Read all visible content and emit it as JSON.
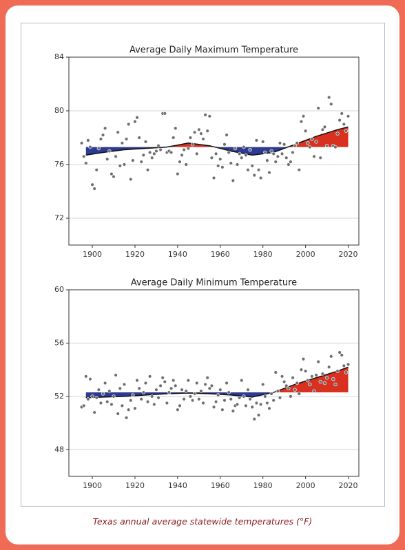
{
  "caption": "Texas annual average statewide temperatures (°F)",
  "chart_data": [
    {
      "type": "scatter",
      "title": "Average Daily Maximum Temperature",
      "xlim": [
        1889,
        2025
      ],
      "xticks": [
        1900,
        1920,
        1940,
        1960,
        1980,
        2000,
        2020
      ],
      "ylim": [
        70,
        84
      ],
      "yticks": [
        72,
        76,
        80,
        84
      ],
      "grid": true,
      "color": "#6f6f6f",
      "x": [
        1895,
        1896,
        1897,
        1898,
        1899,
        1900,
        1901,
        1902,
        1903,
        1904,
        1905,
        1906,
        1907,
        1908,
        1909,
        1910,
        1911,
        1912,
        1913,
        1914,
        1915,
        1916,
        1917,
        1918,
        1919,
        1920,
        1921,
        1922,
        1923,
        1924,
        1925,
        1926,
        1927,
        1928,
        1929,
        1930,
        1931,
        1932,
        1933,
        1934,
        1935,
        1936,
        1937,
        1938,
        1939,
        1940,
        1941,
        1942,
        1943,
        1944,
        1945,
        1946,
        1947,
        1948,
        1949,
        1950,
        1951,
        1952,
        1953,
        1954,
        1955,
        1956,
        1957,
        1958,
        1959,
        1960,
        1961,
        1962,
        1963,
        1964,
        1965,
        1966,
        1967,
        1968,
        1969,
        1970,
        1971,
        1972,
        1973,
        1974,
        1975,
        1976,
        1977,
        1978,
        1979,
        1980,
        1981,
        1982,
        1983,
        1984,
        1985,
        1986,
        1987,
        1988,
        1989,
        1990,
        1991,
        1992,
        1993,
        1994,
        1995,
        1996,
        1997,
        1998,
        1999,
        2000,
        2001,
        2002,
        2003,
        2004,
        2005,
        2006,
        2007,
        2008,
        2009,
        2010,
        2011,
        2012,
        2013,
        2014,
        2015,
        2016,
        2017,
        2018,
        2019,
        2020
      ],
      "values": [
        77.6,
        76.6,
        76.1,
        77.8,
        77.3,
        74.5,
        74.2,
        75.6,
        77.2,
        77.9,
        78.2,
        78.7,
        76.4,
        77.0,
        75.3,
        75.1,
        76.6,
        78.4,
        75.9,
        77.6,
        76.0,
        77.9,
        79.0,
        74.9,
        76.3,
        79.2,
        79.5,
        78.0,
        76.2,
        76.7,
        77.7,
        75.6,
        76.9,
        76.5,
        76.8,
        77.0,
        77.4,
        77.1,
        79.8,
        79.8,
        76.9,
        77.0,
        76.9,
        78.0,
        78.7,
        75.3,
        76.2,
        76.7,
        77.1,
        76.0,
        77.2,
        78.0,
        77.5,
        78.4,
        76.8,
        78.6,
        78.3,
        77.9,
        79.7,
        78.5,
        79.6,
        76.5,
        75.0,
        76.8,
        75.9,
        76.4,
        75.8,
        77.5,
        78.2,
        76.9,
        76.1,
        74.8,
        77.2,
        76.0,
        76.8,
        76.5,
        77.3,
        76.7,
        75.6,
        77.1,
        75.9,
        75.2,
        77.8,
        75.6,
        75.0,
        77.7,
        76.9,
        76.3,
        75.4,
        77.0,
        76.8,
        76.2,
        76.6,
        77.6,
        76.8,
        77.5,
        76.5,
        76.0,
        76.2,
        76.9,
        77.4,
        77.6,
        75.6,
        79.2,
        79.6,
        78.5,
        77.6,
        77.3,
        77.9,
        76.6,
        77.7,
        80.2,
        76.5,
        78.6,
        78.8,
        77.4,
        81.0,
        80.5,
        77.4,
        77.3,
        78.3,
        79.3,
        79.8,
        79.0,
        78.5,
        79.6
      ],
      "baseline": 77.3,
      "band_colors": {
        "above": "#d9311f",
        "below": "#2c3a94"
      },
      "trend": {
        "x": [
          1897,
          1905,
          1915,
          1925,
          1935,
          1945,
          1955,
          1965,
          1975,
          1985,
          1995,
          2005,
          2015,
          2020
        ],
        "values": [
          76.7,
          76.9,
          77.1,
          77.2,
          77.3,
          77.6,
          77.4,
          77.0,
          76.7,
          76.9,
          77.5,
          78.1,
          78.6,
          78.8
        ]
      }
    },
    {
      "type": "scatter",
      "title": "Average Daily Minimum Temperature",
      "xlim": [
        1889,
        2025
      ],
      "xticks": [
        1900,
        1920,
        1940,
        1960,
        1980,
        2000,
        2020
      ],
      "ylim": [
        46,
        60
      ],
      "yticks": [
        48,
        52,
        56,
        60
      ],
      "grid": true,
      "color": "#6f6f6f",
      "x": [
        1895,
        1896,
        1897,
        1898,
        1899,
        1900,
        1901,
        1902,
        1903,
        1904,
        1905,
        1906,
        1907,
        1908,
        1909,
        1910,
        1911,
        1912,
        1913,
        1914,
        1915,
        1916,
        1917,
        1918,
        1919,
        1920,
        1921,
        1922,
        1923,
        1924,
        1925,
        1926,
        1927,
        1928,
        1929,
        1930,
        1931,
        1932,
        1933,
        1934,
        1935,
        1936,
        1937,
        1938,
        1939,
        1940,
        1941,
        1942,
        1943,
        1944,
        1945,
        1946,
        1947,
        1948,
        1949,
        1950,
        1951,
        1952,
        1953,
        1954,
        1955,
        1956,
        1957,
        1958,
        1959,
        1960,
        1961,
        1962,
        1963,
        1964,
        1965,
        1966,
        1967,
        1968,
        1969,
        1970,
        1971,
        1972,
        1973,
        1974,
        1975,
        1976,
        1977,
        1978,
        1979,
        1980,
        1981,
        1982,
        1983,
        1984,
        1985,
        1986,
        1987,
        1988,
        1989,
        1990,
        1991,
        1992,
        1993,
        1994,
        1995,
        1996,
        1997,
        1998,
        1999,
        2000,
        2001,
        2002,
        2003,
        2004,
        2005,
        2006,
        2007,
        2008,
        2009,
        2010,
        2011,
        2012,
        2013,
        2014,
        2015,
        2016,
        2017,
        2018,
        2019,
        2020
      ],
      "values": [
        51.2,
        51.3,
        53.5,
        51.8,
        53.3,
        52.0,
        50.8,
        51.9,
        52.5,
        51.5,
        52.2,
        53.0,
        51.6,
        52.4,
        51.4,
        52.0,
        53.6,
        50.7,
        52.6,
        51.3,
        52.9,
        50.4,
        51.0,
        51.7,
        52.1,
        51.1,
        53.2,
        52.6,
        51.8,
        52.3,
        53.0,
        51.6,
        53.5,
        52.0,
        51.4,
        52.5,
        51.9,
        52.8,
        53.4,
        53.1,
        51.5,
        52.3,
        52.6,
        53.2,
        52.8,
        51.0,
        51.3,
        52.5,
        51.8,
        52.4,
        53.2,
        52.0,
        51.7,
        52.2,
        53.0,
        51.8,
        52.4,
        51.5,
        52.9,
        53.4,
        52.6,
        52.8,
        51.2,
        51.6,
        52.1,
        52.5,
        51.0,
        51.7,
        53.0,
        52.3,
        51.8,
        50.9,
        51.3,
        51.4,
        51.9,
        53.2,
        52.0,
        51.3,
        52.5,
        51.8,
        51.2,
        50.3,
        51.5,
        50.6,
        51.4,
        52.9,
        52.0,
        51.5,
        51.1,
        52.2,
        51.7,
        53.8,
        52.4,
        51.9,
        53.5,
        53.1,
        52.8,
        52.6,
        52.0,
        53.4,
        52.5,
        53.0,
        52.2,
        54.0,
        54.8,
        53.9,
        53.2,
        52.9,
        53.5,
        52.4,
        53.6,
        54.6,
        53.1,
        53.7,
        53.0,
        53.4,
        54.2,
        55.0,
        53.3,
        52.9,
        53.9,
        55.3,
        55.1,
        54.3,
        53.8,
        54.4
      ],
      "baseline": 52.3,
      "band_colors": {
        "above": "#d9311f",
        "below": "#2c3a94"
      },
      "trend": {
        "x": [
          1897,
          1905,
          1915,
          1925,
          1935,
          1945,
          1955,
          1965,
          1975,
          1985,
          1995,
          2005,
          2015,
          2020
        ],
        "values": [
          51.9,
          51.95,
          52.0,
          52.1,
          52.2,
          52.25,
          52.2,
          52.1,
          51.95,
          52.3,
          52.9,
          53.4,
          53.9,
          54.2
        ]
      }
    }
  ]
}
